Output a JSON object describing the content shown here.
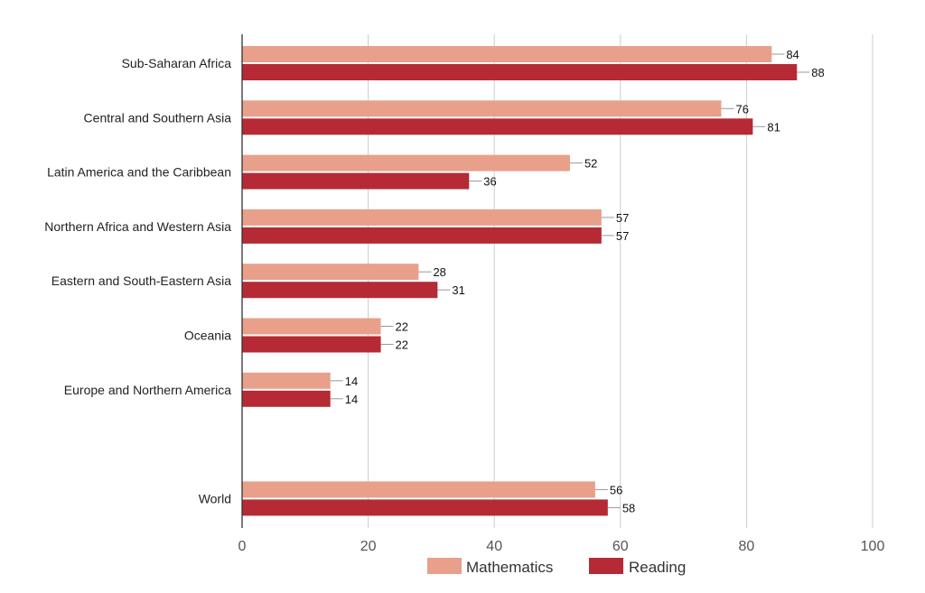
{
  "chart_data": {
    "type": "bar",
    "orientation": "horizontal",
    "categories": [
      "Sub-Saharan Africa",
      "Central and Southern Asia",
      "Latin America and the Caribbean",
      "Northern Africa and Western Asia",
      "Eastern and South-Eastern Asia",
      "Oceania",
      "Europe and Northern America",
      "",
      "World"
    ],
    "series": [
      {
        "name": "Mathematics",
        "color": "#e8a08a",
        "values": [
          84,
          76,
          52,
          57,
          28,
          22,
          14,
          null,
          56
        ]
      },
      {
        "name": "Reading",
        "color": "#b52a35",
        "values": [
          88,
          81,
          36,
          57,
          31,
          22,
          14,
          null,
          58
        ]
      }
    ],
    "xlim": [
      0,
      100
    ],
    "xticks": [
      0,
      20,
      40,
      60,
      80,
      100
    ],
    "grid": true,
    "legend_position": "bottom"
  }
}
